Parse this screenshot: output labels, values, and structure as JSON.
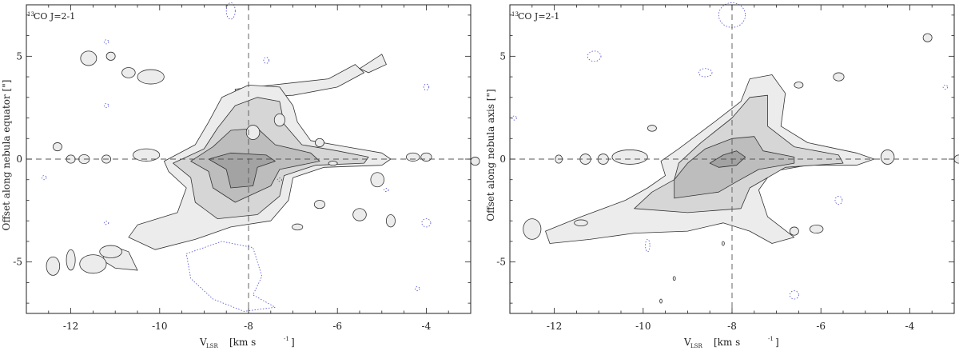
{
  "chart_data": [
    {
      "type": "contour",
      "panel": "left",
      "annotation": {
        "sup": "13",
        "text": "CO J=2-1"
      },
      "xlabel": {
        "main": "V",
        "sub": "LSR",
        "unit": "[km s",
        "unit_sup": "-1",
        "unit_end": "]"
      },
      "ylabel": "Offset along nebula equator [\"]",
      "xlim": [
        -13,
        -3
      ],
      "ylim": [
        -7.5,
        7.5
      ],
      "xticks": [
        -12,
        -10,
        -8,
        -6,
        -4
      ],
      "xtick_labels": [
        "-12",
        "-10",
        "-8",
        "-6",
        "-4"
      ],
      "yticks": [
        -5,
        0,
        5
      ],
      "ytick_labels": [
        "-5",
        "0",
        "5"
      ],
      "ref_lines": {
        "x": -8,
        "y": 0
      },
      "contour_fills": [
        "#ececec",
        "#d6d6d6",
        "#bdbdbd",
        "#a3a3a3"
      ],
      "negative_contour_color": "#4b4bd6",
      "levels": [
        [
          [
            -9.9,
            -0.1
          ],
          [
            -9.2,
            0.7
          ],
          [
            -8.9,
            1.8
          ],
          [
            -8.6,
            3.0
          ],
          [
            -8.0,
            3.6
          ],
          [
            -7.3,
            3.5
          ],
          [
            -7.0,
            2.6
          ],
          [
            -6.9,
            1.8
          ],
          [
            -6.6,
            0.9
          ],
          [
            -5.8,
            0.6
          ],
          [
            -5.0,
            0.3
          ],
          [
            -4.8,
            0
          ],
          [
            -5.0,
            -0.3
          ],
          [
            -6.3,
            -0.4
          ],
          [
            -7.0,
            -0.9
          ],
          [
            -7.1,
            -2.0
          ],
          [
            -7.5,
            -3.0
          ],
          [
            -8.4,
            -3.3
          ],
          [
            -9.2,
            -3.9
          ],
          [
            -10.1,
            -4.4
          ],
          [
            -10.7,
            -3.8
          ],
          [
            -10.5,
            -3.2
          ],
          [
            -9.6,
            -2.6
          ],
          [
            -9.4,
            -1.4
          ],
          [
            -9.8,
            -0.6
          ]
        ],
        [
          [
            -9.7,
            -0.2
          ],
          [
            -9.0,
            0.5
          ],
          [
            -8.7,
            1.5
          ],
          [
            -8.3,
            2.6
          ],
          [
            -7.8,
            3.0
          ],
          [
            -7.3,
            2.8
          ],
          [
            -7.2,
            1.7
          ],
          [
            -6.8,
            0.7
          ],
          [
            -6.0,
            0.4
          ],
          [
            -5.3,
            0.1
          ],
          [
            -5.4,
            -0.2
          ],
          [
            -6.5,
            -0.3
          ],
          [
            -7.2,
            -0.8
          ],
          [
            -7.3,
            -1.8
          ],
          [
            -7.8,
            -2.7
          ],
          [
            -8.7,
            -2.9
          ],
          [
            -9.2,
            -2.1
          ],
          [
            -9.3,
            -0.9
          ]
        ],
        [
          [
            -9.3,
            -0.1
          ],
          [
            -8.8,
            0.6
          ],
          [
            -8.4,
            1.4
          ],
          [
            -7.8,
            1.5
          ],
          [
            -7.4,
            0.7
          ],
          [
            -6.6,
            0.3
          ],
          [
            -6.4,
            -0.1
          ],
          [
            -7.3,
            -0.5
          ],
          [
            -7.5,
            -1.3
          ],
          [
            -8.3,
            -2.1
          ],
          [
            -8.8,
            -1.4
          ],
          [
            -8.9,
            -0.6
          ]
        ],
        [
          [
            -8.9,
            0.0
          ],
          [
            -8.4,
            0.3
          ],
          [
            -7.6,
            0.2
          ],
          [
            -7.4,
            -0.1
          ],
          [
            -7.8,
            -0.4
          ],
          [
            -7.9,
            -1.3
          ],
          [
            -8.4,
            -1.4
          ],
          [
            -8.5,
            -0.5
          ]
        ]
      ],
      "islands": [
        [
          -11.6,
          4.9,
          0.18,
          0.35
        ],
        [
          -11.1,
          5.0,
          0.1,
          0.2
        ],
        [
          -10.7,
          4.2,
          0.15,
          0.25
        ],
        [
          -10.2,
          4.0,
          0.3,
          0.35
        ],
        [
          -12.3,
          0.6,
          0.1,
          0.2
        ],
        [
          -12.0,
          0.0,
          0.1,
          0.2
        ],
        [
          -11.7,
          0.0,
          0.12,
          0.22
        ],
        [
          -11.2,
          0.0,
          0.1,
          0.2
        ],
        [
          -10.3,
          0.2,
          0.3,
          0.3
        ],
        [
          -7.9,
          1.3,
          0.15,
          0.35
        ],
        [
          -7.3,
          1.9,
          0.12,
          0.3
        ],
        [
          -6.4,
          0.8,
          0.1,
          0.2
        ],
        [
          -4.3,
          0.1,
          0.15,
          0.2
        ],
        [
          -4.0,
          0.1,
          0.12,
          0.2
        ],
        [
          -6.1,
          -0.2,
          0.1,
          0.1
        ],
        [
          -12.4,
          -5.2,
          0.15,
          0.45
        ],
        [
          -12.0,
          -4.9,
          0.1,
          0.5
        ],
        [
          -11.5,
          -5.1,
          0.3,
          0.45
        ],
        [
          -11.1,
          -4.5,
          0.25,
          0.3
        ],
        [
          -6.9,
          -3.3,
          0.12,
          0.15
        ],
        [
          -6.4,
          -2.2,
          0.12,
          0.2
        ],
        [
          -5.1,
          -1.0,
          0.15,
          0.35
        ],
        [
          -5.5,
          -2.7,
          0.15,
          0.3
        ],
        [
          -4.8,
          -3.0,
          0.1,
          0.3
        ],
        [
          -2.9,
          -0.1,
          0.1,
          0.2
        ]
      ],
      "bands": [
        [
          [
            -8.3,
            3.4
          ],
          [
            -6.2,
            3.9
          ],
          [
            -5.6,
            4.6
          ],
          [
            -5.4,
            4.2
          ],
          [
            -6.0,
            3.5
          ],
          [
            -7.0,
            3.1
          ],
          [
            -8.3,
            3.0
          ]
        ],
        [
          [
            -5.5,
            4.4
          ],
          [
            -5.0,
            5.1
          ],
          [
            -4.9,
            4.6
          ],
          [
            -5.3,
            4.2
          ]
        ],
        [
          [
            -11.1,
            -4.2
          ],
          [
            -10.7,
            -4.5
          ],
          [
            -10.5,
            -5.4
          ],
          [
            -11.0,
            -5.3
          ],
          [
            -11.3,
            -4.9
          ]
        ]
      ],
      "negative_contours": [
        [
          -8.4,
          7.2,
          0.1,
          0.4
        ],
        [
          -11.2,
          5.7,
          0.05,
          0.1
        ],
        [
          -7.6,
          4.8,
          0.06,
          0.15
        ],
        [
          -11.2,
          2.6,
          0.05,
          0.1
        ],
        [
          -12.6,
          -0.9,
          0.05,
          0.1
        ],
        [
          -7.3,
          -1.0,
          0.05,
          0.08
        ],
        [
          -4.9,
          -1.5,
          0.05,
          0.08
        ],
        [
          -4.0,
          -3.1,
          0.1,
          0.2
        ],
        [
          -11.2,
          -3.1,
          0.05,
          0.08
        ],
        [
          -4.0,
          3.5,
          0.06,
          0.15
        ],
        [
          -4.2,
          -6.3,
          0.05,
          0.1
        ]
      ],
      "negative_band": [
        [
          -9.4,
          -4.6
        ],
        [
          -8.6,
          -4.0
        ],
        [
          -7.9,
          -4.3
        ],
        [
          -7.7,
          -5.7
        ],
        [
          -7.9,
          -6.6
        ],
        [
          -7.4,
          -7.2
        ],
        [
          -8.1,
          -7.4
        ],
        [
          -8.8,
          -6.8
        ],
        [
          -9.3,
          -5.8
        ]
      ]
    },
    {
      "type": "contour",
      "panel": "right",
      "annotation": {
        "sup": "13",
        "text": "CO J=2-1"
      },
      "xlabel": {
        "main": "V",
        "sub": "LSR",
        "unit": "[km s",
        "unit_sup": "-1",
        "unit_end": "]"
      },
      "ylabel": "Offset along nebula axis [\"]",
      "xlim": [
        -13,
        -3
      ],
      "ylim": [
        -7.5,
        7.5
      ],
      "xticks": [
        -12,
        -10,
        -8,
        -6,
        -4
      ],
      "xtick_labels": [
        "-12",
        "-10",
        "-8",
        "-6",
        "-4"
      ],
      "yticks": [
        -5,
        0,
        5
      ],
      "ytick_labels": [
        "-5",
        "0",
        "5"
      ],
      "ref_lines": {
        "x": -8,
        "y": 0
      },
      "contour_fills": [
        "#ececec",
        "#d6d6d6",
        "#bdbdbd",
        "#a3a3a3"
      ],
      "negative_contour_color": "#4b4bd6",
      "levels": [
        [
          [
            -12.2,
            -3.5
          ],
          [
            -11.4,
            -2.8
          ],
          [
            -10.4,
            -2.0
          ],
          [
            -9.9,
            -1.4
          ],
          [
            -9.5,
            -0.8
          ],
          [
            -9.6,
            -0.1
          ],
          [
            -9.2,
            0.5
          ],
          [
            -8.4,
            1.8
          ],
          [
            -7.8,
            2.8
          ],
          [
            -7.6,
            3.9
          ],
          [
            -7.1,
            4.1
          ],
          [
            -6.8,
            3.2
          ],
          [
            -6.9,
            1.6
          ],
          [
            -6.3,
            0.8
          ],
          [
            -5.2,
            0.3
          ],
          [
            -4.8,
            0
          ],
          [
            -5.2,
            -0.3
          ],
          [
            -6.3,
            -0.3
          ],
          [
            -7.1,
            -0.6
          ],
          [
            -7.4,
            -1.5
          ],
          [
            -7.2,
            -2.8
          ],
          [
            -6.9,
            -3.3
          ],
          [
            -6.6,
            -3.8
          ],
          [
            -7.1,
            -4.1
          ],
          [
            -7.6,
            -3.5
          ],
          [
            -8.2,
            -3.1
          ],
          [
            -9.0,
            -3.5
          ],
          [
            -10.2,
            -3.6
          ],
          [
            -11.2,
            -3.9
          ],
          [
            -12.1,
            -4.1
          ]
        ],
        [
          [
            -9.2,
            -0.2
          ],
          [
            -8.7,
            0.8
          ],
          [
            -8.0,
            2.0
          ],
          [
            -7.6,
            3.0
          ],
          [
            -7.2,
            3.1
          ],
          [
            -7.2,
            1.6
          ],
          [
            -6.6,
            0.6
          ],
          [
            -5.6,
            0.2
          ],
          [
            -5.5,
            -0.2
          ],
          [
            -6.8,
            -0.4
          ],
          [
            -7.6,
            -1.4
          ],
          [
            -7.8,
            -2.4
          ],
          [
            -9.0,
            -2.6
          ],
          [
            -10.2,
            -2.4
          ],
          [
            -9.8,
            -1.6
          ],
          [
            -9.3,
            -1.0
          ]
        ],
        [
          [
            -9.0,
            -0.2
          ],
          [
            -8.6,
            0.5
          ],
          [
            -8.0,
            1.0
          ],
          [
            -7.5,
            1.1
          ],
          [
            -7.3,
            0.4
          ],
          [
            -6.6,
            0.1
          ],
          [
            -6.6,
            -0.2
          ],
          [
            -7.4,
            -0.5
          ],
          [
            -7.9,
            -1.1
          ],
          [
            -8.3,
            -1.6
          ],
          [
            -9.3,
            -1.9
          ],
          [
            -9.3,
            -1.0
          ]
        ],
        [
          [
            -8.5,
            -0.2
          ],
          [
            -8.2,
            0.2
          ],
          [
            -7.9,
            0.4
          ],
          [
            -7.7,
            0.1
          ],
          [
            -7.9,
            -0.3
          ],
          [
            -8.3,
            -0.4
          ]
        ]
      ],
      "islands": [
        [
          -11.9,
          0.0,
          0.08,
          0.2
        ],
        [
          -11.3,
          0.0,
          0.12,
          0.25
        ],
        [
          -10.9,
          0.0,
          0.12,
          0.25
        ],
        [
          -10.3,
          0.1,
          0.4,
          0.35
        ],
        [
          -9.8,
          1.5,
          0.1,
          0.15
        ],
        [
          -6.5,
          3.6,
          0.1,
          0.15
        ],
        [
          -5.6,
          4.0,
          0.12,
          0.2
        ],
        [
          -4.5,
          0.1,
          0.15,
          0.35
        ],
        [
          -3.6,
          5.9,
          0.1,
          0.2
        ],
        [
          -2.9,
          0.0,
          0.1,
          0.2
        ],
        [
          -12.5,
          -3.4,
          0.2,
          0.5
        ],
        [
          -11.4,
          -3.1,
          0.15,
          0.15
        ],
        [
          -6.1,
          -3.4,
          0.15,
          0.2
        ],
        [
          -6.6,
          -3.5,
          0.1,
          0.2
        ]
      ],
      "bands": [
        [
          [
            -7.1,
            1.3
          ],
          [
            -6.9,
            1.5
          ],
          [
            -6.8,
            1.2
          ],
          [
            -7.0,
            1.1
          ]
        ]
      ],
      "negative_contours": [
        [
          -8.0,
          7.0,
          0.3,
          0.6
        ],
        [
          -11.1,
          5.0,
          0.15,
          0.25
        ],
        [
          -8.6,
          4.2,
          0.15,
          0.2
        ],
        [
          -12.9,
          2.0,
          0.05,
          0.1
        ],
        [
          -9.9,
          -4.2,
          0.05,
          0.3
        ],
        [
          -5.6,
          -2.0,
          0.08,
          0.2
        ],
        [
          -6.6,
          -6.6,
          0.1,
          0.2
        ],
        [
          -3.2,
          3.5,
          0.05,
          0.1
        ]
      ],
      "markers": [
        [
          -8.2,
          -4.1
        ],
        [
          -9.3,
          -5.8
        ],
        [
          -9.6,
          -6.9
        ]
      ]
    }
  ]
}
